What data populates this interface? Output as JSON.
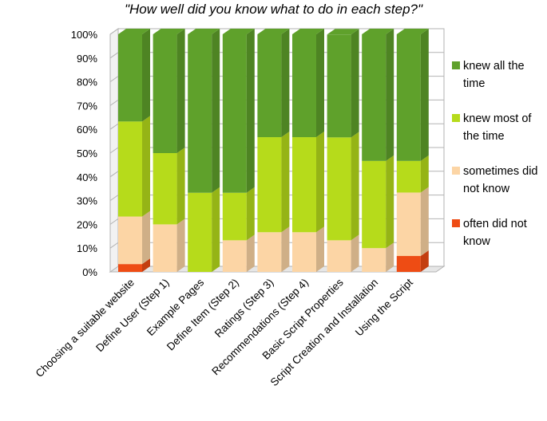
{
  "chart_data": {
    "type": "bar",
    "stacked": true,
    "title": "\"How well did you know what to do in each step?\"",
    "xlabel": "",
    "ylabel": "",
    "ylim": [
      0,
      100
    ],
    "y_ticks": [
      "0%",
      "10%",
      "20%",
      "30%",
      "40%",
      "50%",
      "60%",
      "70%",
      "80%",
      "90%",
      "100%"
    ],
    "grid": true,
    "legend_position": "right",
    "categories": [
      "Choosing a suitable website",
      "Define User (Step 1)",
      "Example Pages",
      "Define Item (Step 2)",
      "Ratings (Step 3)",
      "Recommendations (Step 4)",
      "Basic Script Properties",
      "Script Creation and Installation",
      "Using the Script"
    ],
    "series": [
      {
        "name": "often did not know",
        "color": "#ee4c14",
        "values": [
          3.3,
          0,
          0,
          0,
          0,
          0,
          0,
          0,
          6.7
        ]
      },
      {
        "name": "sometimes did not know",
        "color": "#fcd5a5",
        "values": [
          20,
          20,
          0,
          13.3,
          16.7,
          16.7,
          13.3,
          10,
          26.7
        ]
      },
      {
        "name": "knew most of the time",
        "color": "#b6db1b",
        "values": [
          40,
          30,
          33.3,
          20,
          40,
          40,
          43.3,
          36.7,
          13.3
        ]
      },
      {
        "name": "knew all the time",
        "color": "#5fa12b",
        "values": [
          36.7,
          50,
          66.7,
          66.7,
          43.3,
          43.3,
          43.3,
          53.3,
          53.3
        ]
      }
    ]
  },
  "legend": [
    {
      "label": "knew all the time",
      "color": "#5fa12b"
    },
    {
      "label": "knew most of the time",
      "color": "#b6db1b"
    },
    {
      "label": "sometimes did not know",
      "color": "#fcd5a5"
    },
    {
      "label": "often did not know",
      "color": "#ee4c14"
    }
  ]
}
